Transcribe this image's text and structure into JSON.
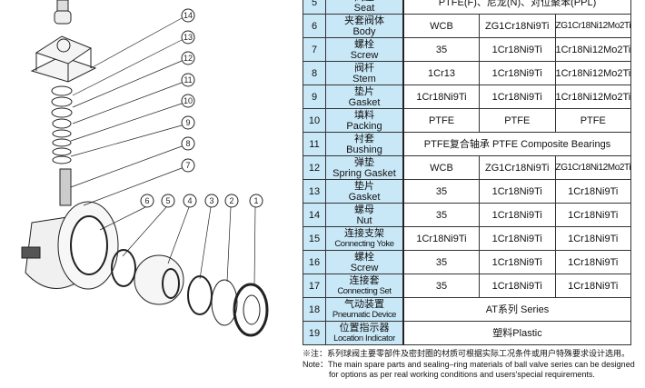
{
  "diagram": {
    "callouts": [
      "1",
      "2",
      "3",
      "4",
      "5",
      "6",
      "7",
      "8",
      "9",
      "10",
      "11",
      "12",
      "13",
      "14"
    ]
  },
  "table": {
    "rows": [
      {
        "no": "5",
        "zh": "阀座",
        "en": "Seat",
        "span": "PTFE(F)、尼龙(N)、对位聚苯(PPL)"
      },
      {
        "no": "6",
        "zh": "夹套阀体",
        "en": "Body",
        "m": [
          "WCB",
          "ZG1Cr18Ni9Ti",
          "ZG1Cr18Ni12Mo2Ti"
        ]
      },
      {
        "no": "7",
        "zh": "螺栓",
        "en": "Screw",
        "m": [
          "35",
          "1Cr18Ni9Ti",
          "1Cr18Ni12Mo2Ti"
        ]
      },
      {
        "no": "8",
        "zh": "阀杆",
        "en": "Stem",
        "m": [
          "1Cr13",
          "1Cr18Ni9Ti",
          "1Cr18Ni12Mo2Ti"
        ]
      },
      {
        "no": "9",
        "zh": "垫片",
        "en": "Gasket",
        "m": [
          "1Cr18Ni9Ti",
          "1Cr18Ni9Ti",
          "1Cr18Ni12Mo2Ti"
        ]
      },
      {
        "no": "10",
        "zh": "填料",
        "en": "Packing",
        "m": [
          "PTFE",
          "PTFE",
          "PTFE"
        ]
      },
      {
        "no": "11",
        "zh": "衬套",
        "en": "Bushing",
        "span": "PTFE复合轴承 PTFE Composite Bearings"
      },
      {
        "no": "12",
        "zh": "弹垫",
        "en": "Spring Gasket",
        "m": [
          "WCB",
          "ZG1Cr18Ni9Ti",
          "ZG1Cr18Ni12Mo2Ti"
        ]
      },
      {
        "no": "13",
        "zh": "垫片",
        "en": "Gasket",
        "m": [
          "35",
          "1Cr18Ni9Ti",
          "1Cr18Ni9Ti"
        ]
      },
      {
        "no": "14",
        "zh": "螺母",
        "en": "Nut",
        "m": [
          "35",
          "1Cr18Ni9Ti",
          "1Cr18Ni9Ti"
        ]
      },
      {
        "no": "15",
        "zh": "连接支架",
        "en": "Connecting Yoke",
        "m": [
          "1Cr18Ni9Ti",
          "1Cr18Ni9Ti",
          "1Cr18Ni9Ti"
        ]
      },
      {
        "no": "16",
        "zh": "螺栓",
        "en": "Screw",
        "m": [
          "35",
          "1Cr18Ni9Ti",
          "1Cr18Ni9Ti"
        ]
      },
      {
        "no": "17",
        "zh": "连接套",
        "en": "Connecting Set",
        "m": [
          "35",
          "1Cr18Ni9Ti",
          "1Cr18Ni9Ti"
        ]
      },
      {
        "no": "18",
        "zh": "气动装置",
        "en": "Pneumatic Device",
        "span": "AT系列 Series"
      },
      {
        "no": "19",
        "zh": "位置指示器",
        "en": "Location Indicator",
        "span": "塑料Plastic"
      }
    ]
  },
  "notes": {
    "zh": "※注：系列球阀主要零部件及密封圈的材质可根据实际工况条件或用户特殊要求设计选用。",
    "en1": "Note：The main spare parts and sealing–ring materials of ball valve series can be designed",
    "en2": "for options as per real working conditions and users'special requirements."
  }
}
